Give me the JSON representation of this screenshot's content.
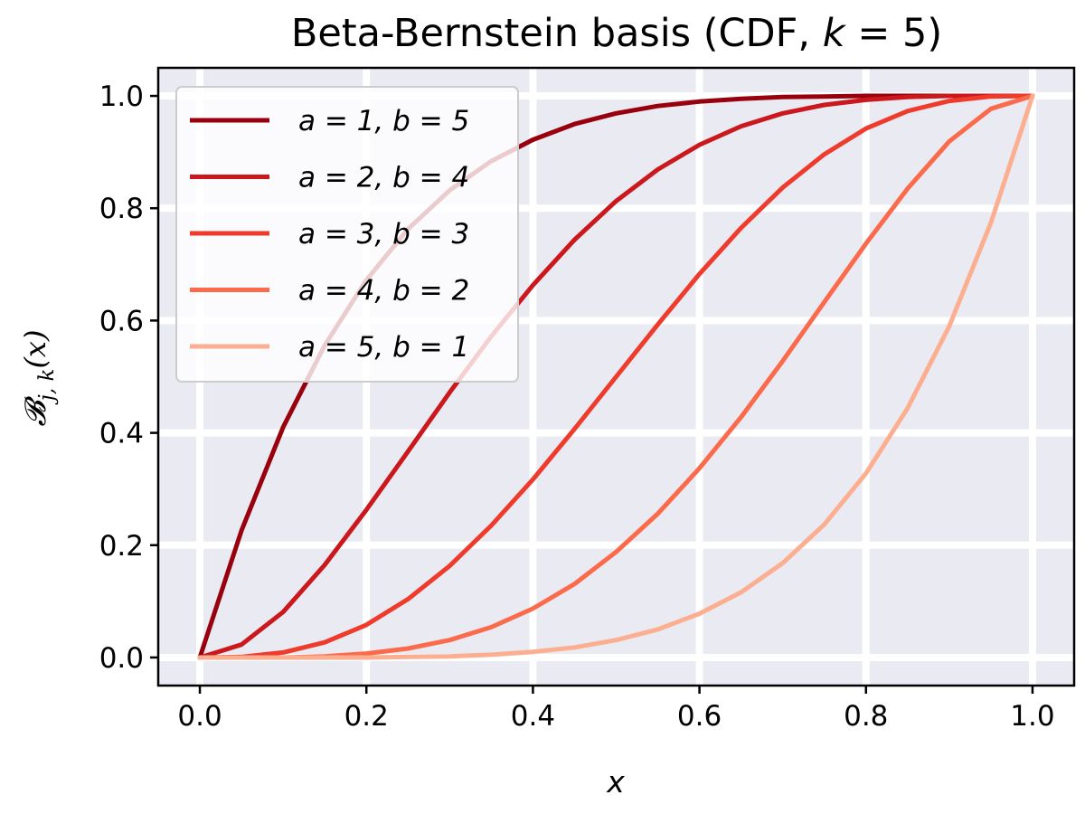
{
  "chart_data": {
    "type": "line",
    "title": "Beta-Bernstein basis (CDF, k = 5)",
    "xlabel": "x",
    "ylabel": "𝓑j,k(x)",
    "xlim": [
      -0.05,
      1.05
    ],
    "ylim": [
      -0.05,
      1.05
    ],
    "xticks": [
      "0.0",
      "0.2",
      "0.4",
      "0.6",
      "0.8",
      "1.0"
    ],
    "yticks": [
      "0.0",
      "0.2",
      "0.4",
      "0.6",
      "0.8",
      "1.0"
    ],
    "grid": true,
    "legend_position": "top-left",
    "x": [
      0.0,
      0.05,
      0.1,
      0.15,
      0.2,
      0.25,
      0.3,
      0.35,
      0.4,
      0.45,
      0.5,
      0.55,
      0.6,
      0.65,
      0.7,
      0.75,
      0.8,
      0.85,
      0.9,
      0.95,
      1.0
    ],
    "series": [
      {
        "name": "a = 1, b = 5",
        "color": "#99000d",
        "values": [
          0.0,
          0.226,
          0.41,
          0.556,
          0.672,
          0.763,
          0.832,
          0.884,
          0.922,
          0.95,
          0.969,
          0.982,
          0.99,
          0.995,
          0.998,
          0.999,
          1.0,
          1.0,
          1.0,
          1.0,
          1.0
        ]
      },
      {
        "name": "a = 2, b = 4",
        "color": "#cb181d",
        "values": [
          0.0,
          0.023,
          0.081,
          0.165,
          0.263,
          0.367,
          0.472,
          0.572,
          0.663,
          0.744,
          0.813,
          0.869,
          0.913,
          0.946,
          0.969,
          0.984,
          0.993,
          0.998,
          1.0,
          1.0,
          1.0
        ]
      },
      {
        "name": "a = 3, b = 3",
        "color": "#ef3b2c",
        "values": [
          0.0,
          0.001,
          0.009,
          0.027,
          0.058,
          0.104,
          0.163,
          0.235,
          0.317,
          0.407,
          0.5,
          0.593,
          0.683,
          0.765,
          0.837,
          0.896,
          0.942,
          0.973,
          0.991,
          0.999,
          1.0
        ]
      },
      {
        "name": "a = 4, b = 2",
        "color": "#fb6a4a",
        "values": [
          0.0,
          0.0,
          0.0,
          0.002,
          0.007,
          0.016,
          0.031,
          0.054,
          0.087,
          0.131,
          0.188,
          0.256,
          0.337,
          0.428,
          0.528,
          0.633,
          0.737,
          0.835,
          0.919,
          0.977,
          1.0
        ]
      },
      {
        "name": "a = 5, b = 1",
        "color": "#fcae91",
        "values": [
          0.0,
          0.0,
          0.0,
          0.0,
          0.0,
          0.001,
          0.002,
          0.005,
          0.01,
          0.018,
          0.031,
          0.05,
          0.078,
          0.116,
          0.168,
          0.237,
          0.328,
          0.444,
          0.59,
          0.774,
          1.0
        ]
      }
    ]
  }
}
